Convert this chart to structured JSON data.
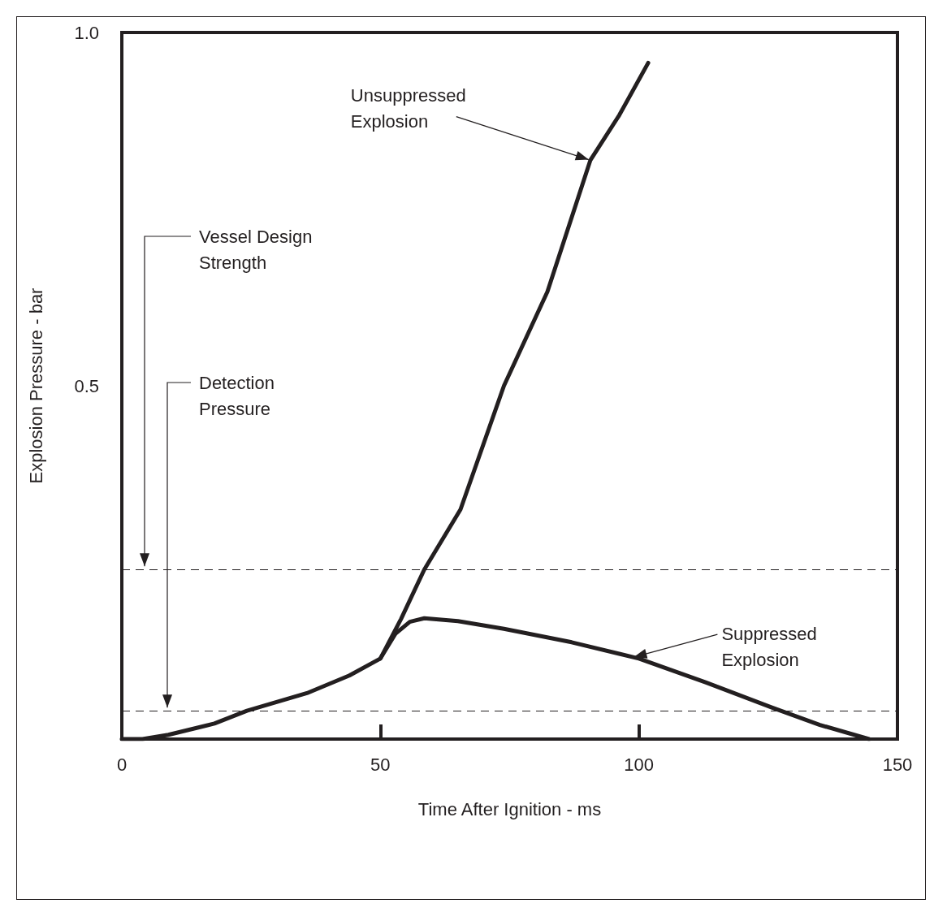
{
  "chart_data": {
    "type": "line",
    "xlabel": "Time After Ignition - ms",
    "ylabel": "Explosion Pressure - bar",
    "xlim": [
      0,
      150
    ],
    "xticks": [
      0,
      50,
      100,
      150
    ],
    "ylim": [
      0,
      1.0
    ],
    "yticks": [
      0.5,
      {
        "value": 1.0,
        "label": "1.0"
      }
    ],
    "series": [
      {
        "color": "#231f20",
        "x": [
          0,
          4,
          9,
          17.9,
          24.2,
          35.8,
          44,
          50,
          54,
          58.5,
          65.5,
          73.9,
          82.3,
          90.6,
          96.2,
          101.8
        ],
        "values": [
          0,
          0,
          0.006,
          0.022,
          0.04,
          0.065,
          0.09,
          0.114,
          0.17,
          0.24,
          0.325,
          0.5,
          0.633,
          0.819,
          0.883,
          0.957
        ]
      },
      {
        "color": "#231f20",
        "x": [
          50,
          52.9,
          55.7,
          58.5,
          65,
          73.9,
          87,
          100,
          113,
          125.6,
          135,
          144.5
        ],
        "values": [
          0.114,
          0.149,
          0.166,
          0.171,
          0.167,
          0.156,
          0.137,
          0.114,
          0.08,
          0.045,
          0.02,
          0
        ]
      }
    ],
    "ref_lines": [
      {
        "axis": "y",
        "value": 0.24,
        "label": "Vessel Design Strength",
        "color": "#231f20",
        "line_style": "dashed"
      },
      {
        "axis": "y",
        "value": 0.04,
        "label": "Detection Pressure",
        "color": "#231f20",
        "line_style": "dashed"
      }
    ],
    "annotations": [
      {
        "text": "Unsuppressed\nExplosion",
        "x": 90.6,
        "y": 0.82
      },
      {
        "text": "Suppressed\nExplosion",
        "x": 98.7,
        "y": 0.116
      }
    ],
    "marker": "none",
    "line_style": "solid",
    "grid": false
  }
}
